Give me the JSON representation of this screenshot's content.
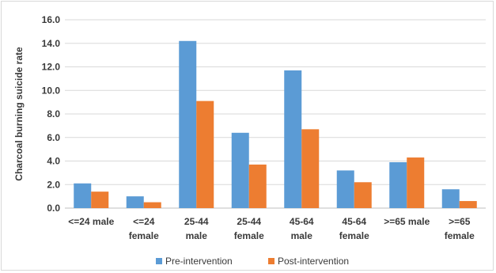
{
  "chart_data": {
    "type": "bar",
    "title": "",
    "xlabel": "",
    "ylabel": "Charcoal burning suicide rate",
    "ylim": [
      0,
      16
    ],
    "yticks": [
      "0.0",
      "2.0",
      "4.0",
      "6.0",
      "8.0",
      "10.0",
      "12.0",
      "14.0",
      "16.0"
    ],
    "grid": true,
    "legend_position": "bottom",
    "categories": [
      [
        "<=24 male"
      ],
      [
        "<=24",
        "female"
      ],
      [
        "25-44",
        "male"
      ],
      [
        "25-44",
        "female"
      ],
      [
        "45-64",
        "male"
      ],
      [
        "45-64",
        "female"
      ],
      [
        ">=65 male"
      ],
      [
        ">=65",
        "female"
      ]
    ],
    "series": [
      {
        "name": "Pre-intervention",
        "color": "#5b9bd5",
        "values": [
          2.1,
          1.0,
          14.2,
          6.4,
          11.7,
          3.2,
          3.9,
          1.6
        ]
      },
      {
        "name": "Post-intervention",
        "color": "#ed7d31",
        "values": [
          1.4,
          0.5,
          9.1,
          3.7,
          6.7,
          2.2,
          4.3,
          0.6
        ]
      }
    ]
  }
}
